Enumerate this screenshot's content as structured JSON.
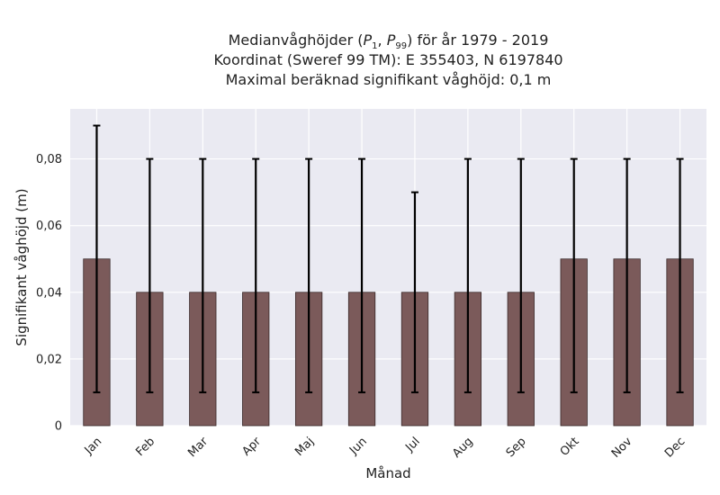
{
  "chart_data": {
    "type": "bar",
    "title_line1_prefix": "Medianvåghöjder (",
    "title_p1_base": "P",
    "title_p1_sub": "1",
    "title_sep": ", ",
    "title_p99_base": "P",
    "title_p99_sub": "99",
    "title_line1_suffix": ") för år 1979 - 2019",
    "title_line2": "Koordinat (Sweref 99 TM): E 355403, N 6197840",
    "title_line3": "Maximal beräknad signifikant våghöjd: 0,1 m",
    "xlabel": "Månad",
    "ylabel": "Signifikant våghöjd (m)",
    "categories": [
      "Jan",
      "Feb",
      "Mar",
      "Apr",
      "Maj",
      "Jun",
      "Jul",
      "Aug",
      "Sep",
      "Okt",
      "Nov",
      "Dec"
    ],
    "values": [
      0.05,
      0.04,
      0.04,
      0.04,
      0.04,
      0.04,
      0.04,
      0.04,
      0.04,
      0.05,
      0.05,
      0.05
    ],
    "error_low": [
      0.01,
      0.01,
      0.01,
      0.01,
      0.01,
      0.01,
      0.01,
      0.01,
      0.01,
      0.01,
      0.01,
      0.01
    ],
    "error_high": [
      0.09,
      0.08,
      0.08,
      0.08,
      0.08,
      0.08,
      0.07,
      0.08,
      0.08,
      0.08,
      0.08,
      0.08
    ],
    "ylim": [
      0,
      0.095
    ],
    "yticks": [
      0,
      0.02,
      0.04,
      0.06,
      0.08
    ],
    "ytick_labels": [
      "0",
      "0,02",
      "0,04",
      "0,06",
      "0,08"
    ],
    "grid": true,
    "bar_color": "#7b5a5a",
    "bar_edge_color": "#3a2a2a",
    "error_color": "#000000",
    "plot_background": "#eaeaf2",
    "grid_color": "#ffffff"
  }
}
